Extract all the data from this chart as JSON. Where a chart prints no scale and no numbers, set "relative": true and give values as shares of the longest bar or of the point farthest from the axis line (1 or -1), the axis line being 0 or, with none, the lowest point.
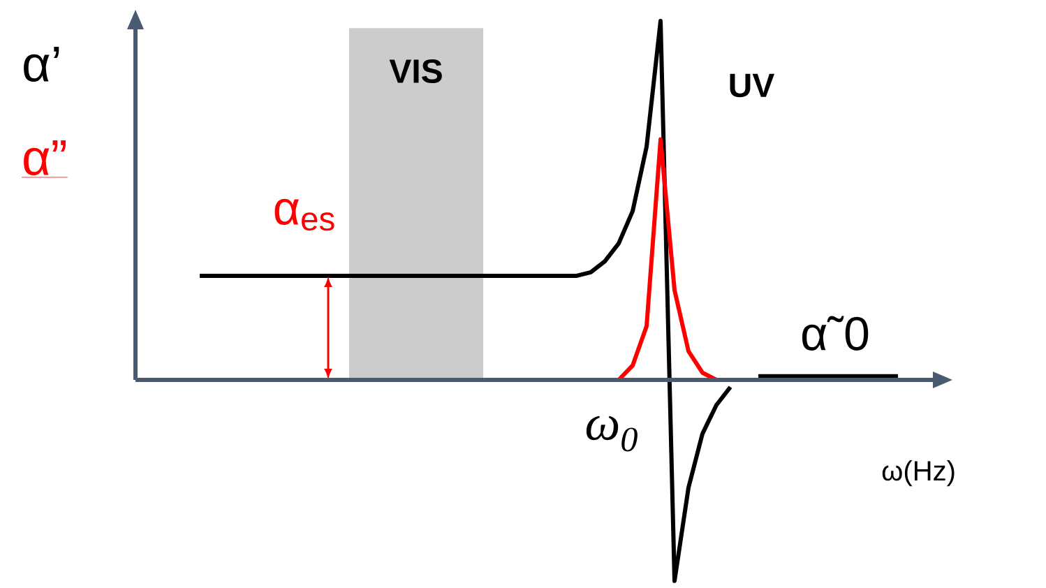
{
  "chart_data": {
    "type": "line",
    "relative": true,
    "xlabel": "ω(Hz)",
    "categories": [
      null,
      null,
      null,
      null,
      null,
      null,
      null,
      null,
      null,
      null,
      null,
      null,
      null,
      null,
      null,
      null,
      null,
      null,
      null,
      null,
      null,
      null,
      null,
      null,
      null,
      null,
      null,
      null,
      null,
      null,
      null,
      null,
      null,
      null,
      null,
      null,
      null,
      null,
      null,
      null,
      null,
      null,
      null,
      null,
      null,
      null,
      null,
      null,
      null,
      null,
      null
    ],
    "series": [
      {
        "name": "α’",
        "color": "#000000",
        "values": [
          0.29,
          0.29,
          0.29,
          0.29,
          0.29,
          0.29,
          0.29,
          0.29,
          0.29,
          0.29,
          0.29,
          0.29,
          0.29,
          0.29,
          0.29,
          0.29,
          0.29,
          0.29,
          0.29,
          0.29,
          0.29,
          0.29,
          0.29,
          0.29,
          0.29,
          0.29,
          0.29,
          0.29,
          0.3,
          0.33,
          0.38,
          0.47,
          0.65,
          1.0,
          -0.56,
          -0.3,
          -0.15,
          -0.07,
          -0.02,
          null,
          0.01,
          0.01,
          0.01,
          0.01,
          0.01,
          0.01,
          0.01,
          0.01,
          0.01,
          0.01,
          0.01
        ]
      },
      {
        "name": "α”",
        "color": "#ff0000",
        "values": [
          null,
          null,
          null,
          null,
          null,
          null,
          null,
          null,
          null,
          null,
          null,
          null,
          null,
          null,
          null,
          null,
          null,
          null,
          null,
          null,
          null,
          null,
          null,
          null,
          null,
          null,
          null,
          null,
          null,
          null,
          0.0,
          0.04,
          0.15,
          0.67,
          0.25,
          0.08,
          0.02,
          0.0,
          null,
          null,
          null,
          null,
          null,
          null,
          null,
          null,
          null,
          null,
          null,
          null,
          null
        ]
      }
    ],
    "annotations": [
      "UV",
      "α$_{es}$",
      "α˜0",
      "ω$_{0}$",
      "VIS"
    ]
  }
}
